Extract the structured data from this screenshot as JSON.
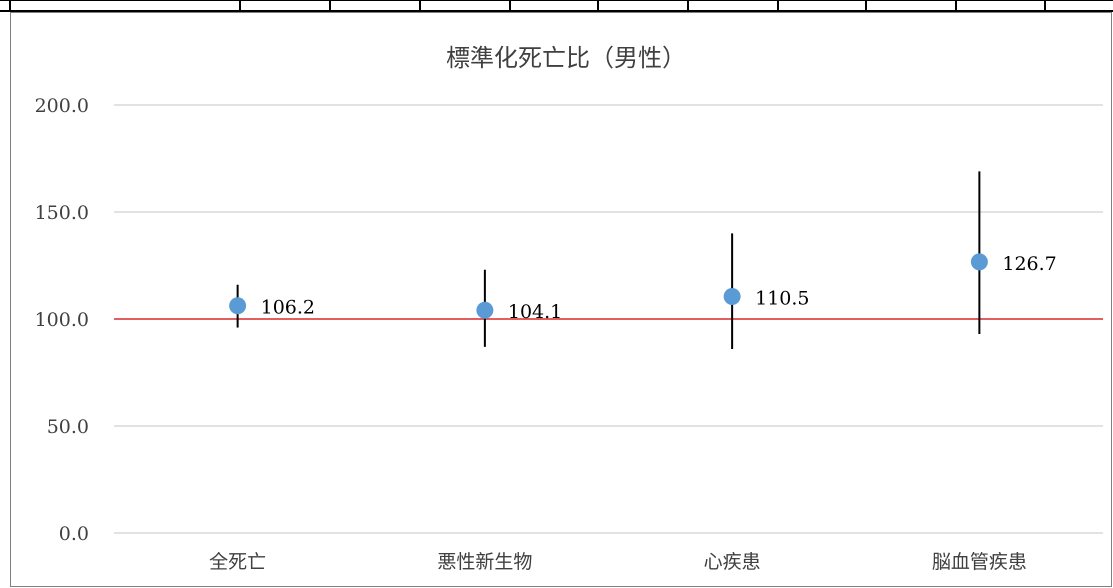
{
  "chart_data": {
    "type": "scatter",
    "title": "標準化死亡比（男性）",
    "categories": [
      "全死亡",
      "悪性新生物",
      "心疾患",
      "脳血管疾患"
    ],
    "series": [
      {
        "values": [
          106.2,
          104.1,
          110.5,
          126.7
        ],
        "value_labels": [
          "106.2",
          "104.1",
          "110.5",
          "126.7"
        ],
        "lower": [
          96,
          87,
          86,
          93
        ],
        "upper": [
          116,
          123,
          140,
          169
        ],
        "color": "#5b9bd5"
      }
    ],
    "reference_line": {
      "value": 100,
      "color": "#e03030"
    },
    "ylim": [
      0,
      200
    ],
    "yticks": [
      0,
      50,
      100,
      150,
      200
    ],
    "ytick_labels": [
      "0.0",
      "50.0",
      "100.0",
      "150.0",
      "200.0"
    ],
    "xlabel": "",
    "ylabel": "",
    "grid": true,
    "error_bar_color": "#000000",
    "gridline_color": "#d9d9d9"
  }
}
